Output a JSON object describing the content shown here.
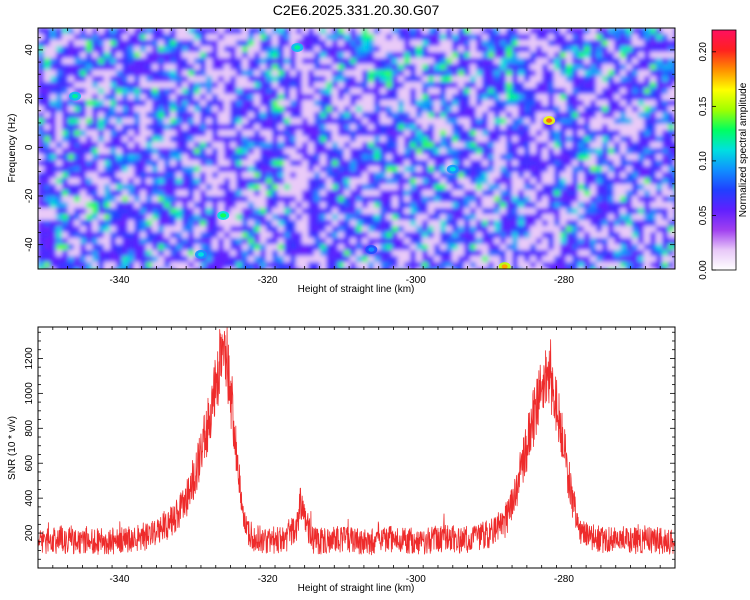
{
  "figure_title": "C2E6.2025.331.20.30.G07",
  "colors": {
    "series_line": "#ee2b2b",
    "frame": "#000000",
    "background": "#ffffff"
  },
  "chart_data": [
    {
      "type": "heatmap",
      "name": "spectrogram",
      "title": "C2E6.2025.331.20.30.G07",
      "xlabel": "Height of straight line (km)",
      "ylabel": "Frequency (Hz)",
      "xlim": [
        -351,
        -265
      ],
      "ylim": [
        -50,
        49
      ],
      "xticks": [
        -340,
        -320,
        -300,
        -280
      ],
      "xtick_labels": [
        "-340",
        "-320",
        "-300",
        "-280"
      ],
      "yticks": [
        -40,
        -20,
        0,
        20,
        40
      ],
      "ytick_labels": [
        "-40",
        "-20",
        "0",
        "20",
        "40"
      ],
      "colorbar": {
        "label": "Normalized spectral amplitude",
        "range": [
          0,
          0.22
        ],
        "ticks": [
          0,
          0.05,
          0.1,
          0.15,
          0.2
        ],
        "tick_labels": [
          "0.00",
          "0.05",
          "0.10",
          "0.15",
          "0.20"
        ],
        "colormap": [
          "#ffffff",
          "#e8c8f8",
          "#a040f0",
          "#6020ff",
          "#2040ff",
          "#1090ff",
          "#00e0e0",
          "#00ff60",
          "#a0ff00",
          "#ffff00",
          "#ff9000",
          "#ff2020",
          "#ff1060"
        ]
      },
      "low_energy_bands_km": [
        -326,
        -315,
        -283
      ],
      "hotspots": [
        {
          "x": -326,
          "y": -28,
          "value": 0.13
        },
        {
          "x": -282,
          "y": 11,
          "value": 0.19
        },
        {
          "x": -329,
          "y": -44,
          "value": 0.11
        },
        {
          "x": -346,
          "y": 21,
          "value": 0.12
        },
        {
          "x": -295,
          "y": -9,
          "value": 0.11
        },
        {
          "x": -316,
          "y": 41,
          "value": 0.12
        },
        {
          "x": -288,
          "y": -49,
          "value": 0.18
        },
        {
          "x": -306,
          "y": -42,
          "value": 0.09
        }
      ]
    },
    {
      "type": "line",
      "name": "snr",
      "xlabel": "Height of straight line (km)",
      "ylabel": "SNR (10 * v/v)",
      "xlim": [
        -351,
        -265
      ],
      "ylim": [
        0,
        1380
      ],
      "xticks": [
        -340,
        -320,
        -300,
        -280
      ],
      "xtick_labels": [
        "-340",
        "-320",
        "-300",
        "-280"
      ],
      "yticks": [
        200,
        400,
        600,
        800,
        1000,
        1200
      ],
      "ytick_labels": [
        "200",
        "400",
        "600",
        "800",
        "1000",
        "1200"
      ],
      "series": [
        {
          "name": "SNR",
          "x": [
            -351,
            -348,
            -345,
            -342,
            -339,
            -336,
            -333,
            -331,
            -330,
            -329,
            -328,
            -327.5,
            -327,
            -326.5,
            -326,
            -325.5,
            -325,
            -324.5,
            -324,
            -323.5,
            -323,
            -322,
            -320,
            -318,
            -316,
            -315.5,
            -315,
            -314.5,
            -314,
            -312,
            -310,
            -308,
            -306,
            -304,
            -302,
            -300,
            -298,
            -296,
            -294,
            -292,
            -290,
            -288,
            -287,
            -286,
            -285,
            -284,
            -283.5,
            -283,
            -282.5,
            -282,
            -281.5,
            -281,
            -280.5,
            -280,
            -279.5,
            -279,
            -278,
            -276,
            -274,
            -272,
            -270,
            -268,
            -265
          ],
          "y": [
            150,
            160,
            155,
            150,
            160,
            190,
            260,
            380,
            520,
            650,
            820,
            950,
            1050,
            1150,
            1220,
            1180,
            1000,
            800,
            560,
            360,
            230,
            170,
            160,
            160,
            250,
            380,
            320,
            220,
            160,
            150,
            170,
            155,
            150,
            160,
            165,
            150,
            160,
            170,
            160,
            165,
            200,
            260,
            360,
            520,
            700,
            870,
            960,
            1030,
            1100,
            1080,
            1020,
            930,
            820,
            700,
            560,
            430,
            230,
            170,
            160,
            165,
            155,
            160,
            150
          ]
        }
      ]
    }
  ]
}
